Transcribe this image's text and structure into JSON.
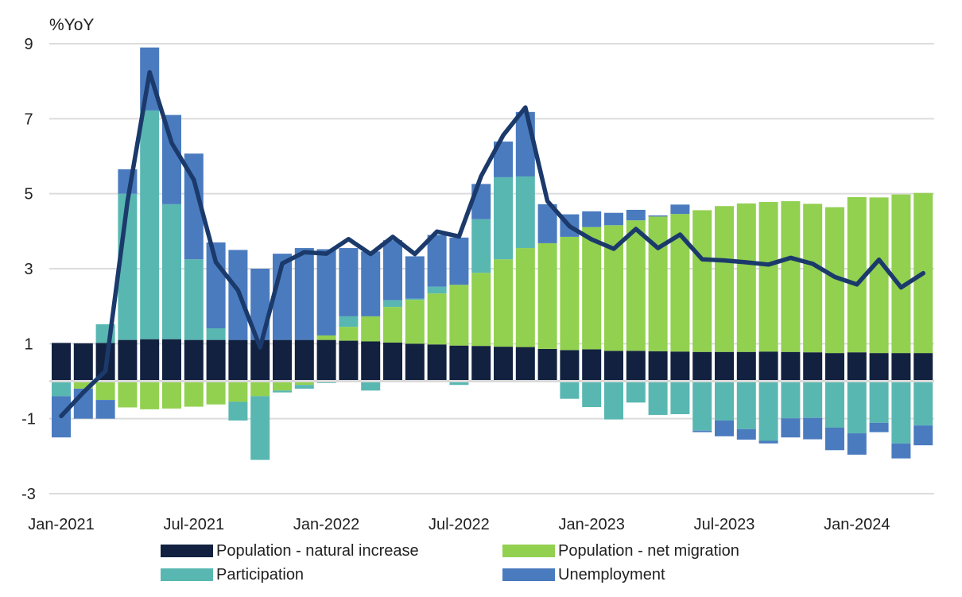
{
  "chart_data": {
    "type": "bar",
    "stacked": true,
    "ylabel": "%YoY",
    "ylim": [
      -3,
      9
    ],
    "yticks": [
      9,
      7,
      5,
      3,
      1,
      -1,
      -3
    ],
    "grid": "horizontal",
    "legend_position": "bottom",
    "categories": [
      "Jan-2021",
      "Feb-2021",
      "Mar-2021",
      "Apr-2021",
      "May-2021",
      "Jun-2021",
      "Jul-2021",
      "Aug-2021",
      "Sep-2021",
      "Oct-2021",
      "Nov-2021",
      "Dec-2021",
      "Jan-2022",
      "Feb-2022",
      "Mar-2022",
      "Apr-2022",
      "May-2022",
      "Jun-2022",
      "Jul-2022",
      "Aug-2022",
      "Sep-2022",
      "Oct-2022",
      "Nov-2022",
      "Dec-2022",
      "Jan-2023",
      "Feb-2023",
      "Mar-2023",
      "Apr-2023",
      "May-2023",
      "Jun-2023",
      "Jul-2023",
      "Aug-2023",
      "Sep-2023",
      "Oct-2023",
      "Nov-2023",
      "Dec-2023",
      "Jan-2024",
      "Feb-2024",
      "Mar-2024",
      "Apr-2024"
    ],
    "xtick_labels": [
      "Jan-2021",
      "Jul-2021",
      "Jan-2022",
      "Jul-2022",
      "Jan-2023",
      "Jul-2023",
      "Jan-2024"
    ],
    "series": [
      {
        "name": "Population - natural increase",
        "color": "#12213f",
        "values": [
          1.02,
          1.01,
          1.02,
          1.1,
          1.12,
          1.12,
          1.1,
          1.1,
          1.1,
          1.1,
          1.1,
          1.1,
          1.1,
          1.08,
          1.06,
          1.03,
          1.0,
          0.98,
          0.95,
          0.94,
          0.92,
          0.91,
          0.86,
          0.83,
          0.85,
          0.81,
          0.81,
          0.8,
          0.79,
          0.78,
          0.78,
          0.78,
          0.79,
          0.78,
          0.77,
          0.75,
          0.77,
          0.75,
          0.75,
          0.75
        ]
      },
      {
        "name": "Population - net migration",
        "color": "#92d050",
        "values": [
          0,
          -0.2,
          -0.5,
          -0.7,
          -0.75,
          -0.73,
          -0.68,
          -0.62,
          -0.55,
          -0.4,
          -0.25,
          -0.1,
          0.12,
          0.37,
          0.67,
          0.95,
          1.17,
          1.36,
          1.62,
          1.95,
          2.33,
          2.64,
          2.82,
          3.02,
          3.26,
          3.35,
          3.48,
          3.59,
          3.67,
          3.78,
          3.89,
          3.96,
          3.99,
          4.02,
          3.96,
          3.89,
          4.14,
          4.15,
          4.23,
          4.27
        ]
      },
      {
        "name": "Participation",
        "color": "#59b7b2",
        "values": [
          -0.4,
          0,
          0.5,
          3.9,
          6.1,
          3.6,
          2.15,
          0.31,
          -0.5,
          -1.7,
          -0.05,
          -0.1,
          -0.05,
          0.28,
          -0.25,
          0.18,
          0.03,
          0.18,
          -0.1,
          1.43,
          2.19,
          1.91,
          0,
          -0.47,
          -0.69,
          -1.02,
          -0.57,
          -0.9,
          -0.88,
          -1.32,
          -1.05,
          -1.28,
          -1.59,
          -0.99,
          -0.98,
          -1.24,
          -1.39,
          -1.11,
          -1.66,
          -1.18
        ]
      },
      {
        "name": "Unemployment",
        "color": "#4a7bbf",
        "values": [
          -1.1,
          -0.8,
          -0.5,
          0.65,
          1.68,
          2.38,
          2.82,
          2.29,
          2.4,
          1.9,
          2.3,
          2.45,
          2.3,
          1.82,
          1.73,
          1.6,
          1.13,
          1.38,
          1.26,
          0.94,
          0.95,
          1.72,
          1.04,
          0.6,
          0.42,
          0.33,
          0.28,
          0.03,
          0.25,
          -0.04,
          -0.42,
          -0.28,
          -0.07,
          -0.51,
          -0.57,
          -0.6,
          -0.57,
          -0.25,
          -0.4,
          -0.53
        ]
      }
    ],
    "line": {
      "type": "line",
      "color": "#1b3a6b",
      "values": [
        -0.93,
        -0.3,
        0.27,
        4.8,
        8.24,
        6.35,
        5.37,
        3.17,
        2.42,
        0.9,
        3.14,
        3.44,
        3.4,
        3.79,
        3.39,
        3.85,
        3.39,
        3.99,
        3.86,
        5.47,
        6.56,
        7.3,
        4.8,
        4.13,
        3.78,
        3.53,
        4.06,
        3.55,
        3.91,
        3.25,
        3.22,
        3.17,
        3.11,
        3.29,
        3.13,
        2.78,
        2.58,
        3.24,
        2.5,
        2.88
      ]
    }
  }
}
